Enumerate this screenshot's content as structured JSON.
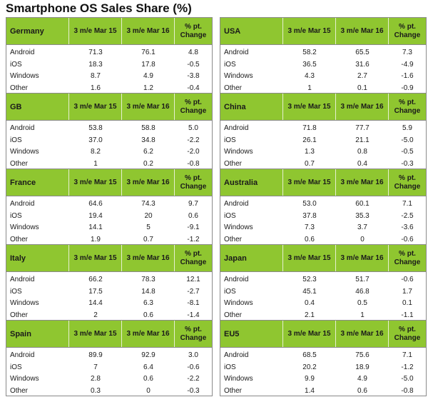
{
  "title": "Smartphone OS Sales Share (%)",
  "colors": {
    "header_green": "#8fc630",
    "border": "#8a8a8a"
  },
  "chart_data": {
    "type": "table",
    "columns": [
      "3 m/e Mar 15",
      "3 m/e Mar 16",
      "% pt. Change"
    ],
    "tables": [
      {
        "region": "Germany",
        "columns": [
          "3 m/e Mar 15",
          "3 m/e Mar 16",
          "% pt. Change"
        ],
        "rows": [
          {
            "os": "Android",
            "v15": "71.3",
            "v16": "76.1",
            "chg": "4.8"
          },
          {
            "os": "iOS",
            "v15": "18.3",
            "v16": "17.8",
            "chg": "-0.5"
          },
          {
            "os": "Windows",
            "v15": "8.7",
            "v16": "4.9",
            "chg": "-3.8"
          },
          {
            "os": "Other",
            "v15": "1.6",
            "v16": "1.2",
            "chg": "-0.4"
          }
        ]
      },
      {
        "region": "USA",
        "columns": [
          "3 m/e Mar 15",
          "3 m/e Mar 16",
          "% pt. Change"
        ],
        "rows": [
          {
            "os": "Android",
            "v15": "58.2",
            "v16": "65.5",
            "chg": "7.3"
          },
          {
            "os": "iOS",
            "v15": "36.5",
            "v16": "31.6",
            "chg": "-4.9"
          },
          {
            "os": "Windows",
            "v15": "4.3",
            "v16": "2.7",
            "chg": "-1.6"
          },
          {
            "os": "Other",
            "v15": "1",
            "v16": "0.1",
            "chg": "-0.9"
          }
        ]
      },
      {
        "region": "GB",
        "columns": [
          "3 m/e Mar 15",
          "3 m/e Mar 16",
          "% pt. Change"
        ],
        "rows": [
          {
            "os": "Android",
            "v15": "53.8",
            "v16": "58.8",
            "chg": "5.0"
          },
          {
            "os": "iOS",
            "v15": "37.0",
            "v16": "34.8",
            "chg": "-2.2"
          },
          {
            "os": "Windows",
            "v15": "8.2",
            "v16": "6.2",
            "chg": "-2.0"
          },
          {
            "os": "Other",
            "v15": "1",
            "v16": "0.2",
            "chg": "-0.8"
          }
        ]
      },
      {
        "region": "China",
        "columns": [
          "3 m/e Mar 15",
          "3 m/e Mar 16",
          "% pt. Change"
        ],
        "rows": [
          {
            "os": "Android",
            "v15": "71.8",
            "v16": "77.7",
            "chg": "5.9"
          },
          {
            "os": "iOS",
            "v15": "26.1",
            "v16": "21.1",
            "chg": "-5.0"
          },
          {
            "os": "Windows",
            "v15": "1.3",
            "v16": "0.8",
            "chg": "-0.5"
          },
          {
            "os": "Other",
            "v15": "0.7",
            "v16": "0.4",
            "chg": "-0.3"
          }
        ]
      },
      {
        "region": "France",
        "columns": [
          "3 m/e Mar 15",
          "3 m/e Mar 16",
          "% pt. Change"
        ],
        "rows": [
          {
            "os": "Android",
            "v15": "64.6",
            "v16": "74.3",
            "chg": "9.7"
          },
          {
            "os": "iOS",
            "v15": "19.4",
            "v16": "20",
            "chg": "0.6"
          },
          {
            "os": "Windows",
            "v15": "14.1",
            "v16": "5",
            "chg": "-9.1"
          },
          {
            "os": "Other",
            "v15": "1.9",
            "v16": "0.7",
            "chg": "-1.2"
          }
        ]
      },
      {
        "region": "Australia",
        "columns": [
          "3 m/e Mar 15",
          "3 m/e Mar 16",
          "% pt. Change"
        ],
        "rows": [
          {
            "os": "Android",
            "v15": "53.0",
            "v16": "60.1",
            "chg": "7.1"
          },
          {
            "os": "iOS",
            "v15": "37.8",
            "v16": "35.3",
            "chg": "-2.5"
          },
          {
            "os": "Windows",
            "v15": "7.3",
            "v16": "3.7",
            "chg": "-3.6"
          },
          {
            "os": "Other",
            "v15": "0.6",
            "v16": "0",
            "chg": "-0.6"
          }
        ]
      },
      {
        "region": "Italy",
        "columns": [
          "3 m/e Mar 15",
          "3 m/e Mar 16",
          "% pt. Change"
        ],
        "rows": [
          {
            "os": "Android",
            "v15": "66.2",
            "v16": "78.3",
            "chg": "12.1"
          },
          {
            "os": "iOS",
            "v15": "17.5",
            "v16": "14.8",
            "chg": "-2.7"
          },
          {
            "os": "Windows",
            "v15": "14.4",
            "v16": "6.3",
            "chg": "-8.1"
          },
          {
            "os": "Other",
            "v15": "2",
            "v16": "0.6",
            "chg": "-1.4"
          }
        ]
      },
      {
        "region": "Japan",
        "columns": [
          "3 m/e Mar 15",
          "3 m/e Mar 16",
          "% pt. Change"
        ],
        "rows": [
          {
            "os": "Android",
            "v15": "52.3",
            "v16": "51.7",
            "chg": "-0.6"
          },
          {
            "os": "iOS",
            "v15": "45.1",
            "v16": "46.8",
            "chg": "1.7"
          },
          {
            "os": "Windows",
            "v15": "0.4",
            "v16": "0.5",
            "chg": "0.1"
          },
          {
            "os": "Other",
            "v15": "2.1",
            "v16": "1",
            "chg": "-1.1"
          }
        ]
      },
      {
        "region": "Spain",
        "columns": [
          "3 m/e Mar 15",
          "3 m/e Mar 16",
          "% pt. Change"
        ],
        "rows": [
          {
            "os": "Android",
            "v15": "89.9",
            "v16": "92.9",
            "chg": "3.0"
          },
          {
            "os": "iOS",
            "v15": "7",
            "v16": "6.4",
            "chg": "-0.6"
          },
          {
            "os": "Windows",
            "v15": "2.8",
            "v16": "0.6",
            "chg": "-2.2"
          },
          {
            "os": "Other",
            "v15": "0.3",
            "v16": "0",
            "chg": "-0.3"
          }
        ]
      },
      {
        "region": "EU5",
        "columns": [
          "3 m/e Mar 15",
          "3 m/e Mar 16",
          "% pt. Change"
        ],
        "rows": [
          {
            "os": "Android",
            "v15": "68.5",
            "v16": "75.6",
            "chg": "7.1"
          },
          {
            "os": "iOS",
            "v15": "20.2",
            "v16": "18.9",
            "chg": "-1.2"
          },
          {
            "os": "Windows",
            "v15": "9.9",
            "v16": "4.9",
            "chg": "-5.0"
          },
          {
            "os": "Other",
            "v15": "1.4",
            "v16": "0.6",
            "chg": "-0.8"
          }
        ]
      }
    ]
  }
}
